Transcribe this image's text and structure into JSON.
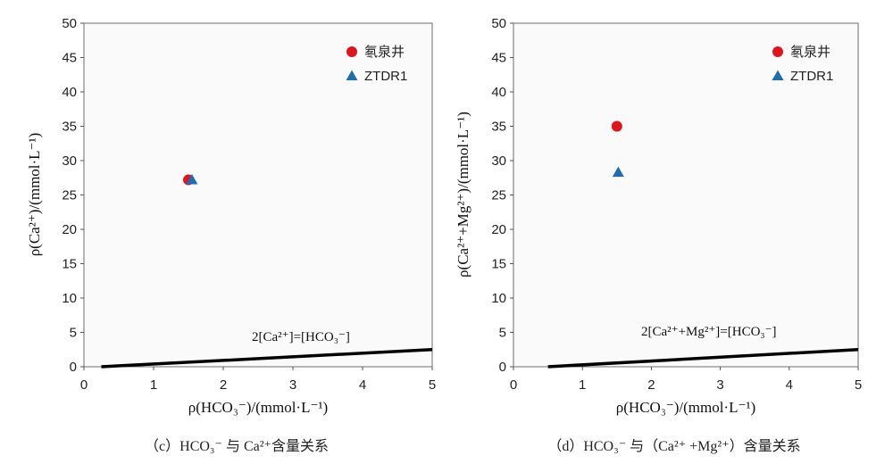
{
  "chart_data": [
    {
      "type": "scatter",
      "panel": "c",
      "caption": "（c）HCO₃⁻ 与 Ca²⁺含量关系",
      "xlabel": "ρ(HCO₃⁻)/(mmol·L⁻¹)",
      "ylabel": "ρ(Ca²⁺)/(mmol·L⁻¹)",
      "xlim": [
        0,
        5
      ],
      "ylim": [
        0,
        50
      ],
      "xticks": [
        0,
        1,
        2,
        3,
        4,
        5
      ],
      "yticks": [
        0,
        5,
        10,
        15,
        20,
        25,
        30,
        35,
        40,
        45,
        50
      ],
      "legend_position": "top-right",
      "series": [
        {
          "name": "氡泉井",
          "marker": "circle",
          "color": "#e0151b",
          "points": [
            [
              1.5,
              27.2
            ]
          ]
        },
        {
          "name": "ZTDR1",
          "marker": "triangle",
          "color": "#1f6db0",
          "points": [
            [
              1.55,
              27.2
            ]
          ]
        }
      ],
      "reference_line": {
        "label": "2[Ca²⁺]=[HCO₃⁻]",
        "points": [
          [
            0.25,
            0
          ],
          [
            5,
            2.5
          ]
        ]
      }
    },
    {
      "type": "scatter",
      "panel": "d",
      "caption": "（d）HCO₃⁻ 与（Ca²⁺ +Mg²⁺）含量关系",
      "xlabel": "ρ(HCO₃⁻)/(mmol·L⁻¹)",
      "ylabel": "ρ(Ca²⁺+Mg²⁺)/(mmol·L⁻¹)",
      "xlim": [
        0,
        5
      ],
      "ylim": [
        0,
        50
      ],
      "xticks": [
        0,
        1,
        2,
        3,
        4,
        5
      ],
      "yticks": [
        0,
        5,
        10,
        15,
        20,
        25,
        30,
        35,
        40,
        45,
        50
      ],
      "legend_position": "top-right",
      "series": [
        {
          "name": "氡泉井",
          "marker": "circle",
          "color": "#e0151b",
          "points": [
            [
              1.5,
              35.0
            ]
          ]
        },
        {
          "name": "ZTDR1",
          "marker": "triangle",
          "color": "#1f6db0",
          "points": [
            [
              1.52,
              28.3
            ]
          ]
        }
      ],
      "reference_line": {
        "label": "2[Ca²⁺+Mg²⁺]=[HCO₃⁻]",
        "points": [
          [
            0.5,
            0
          ],
          [
            5,
            2.5
          ]
        ]
      }
    }
  ]
}
